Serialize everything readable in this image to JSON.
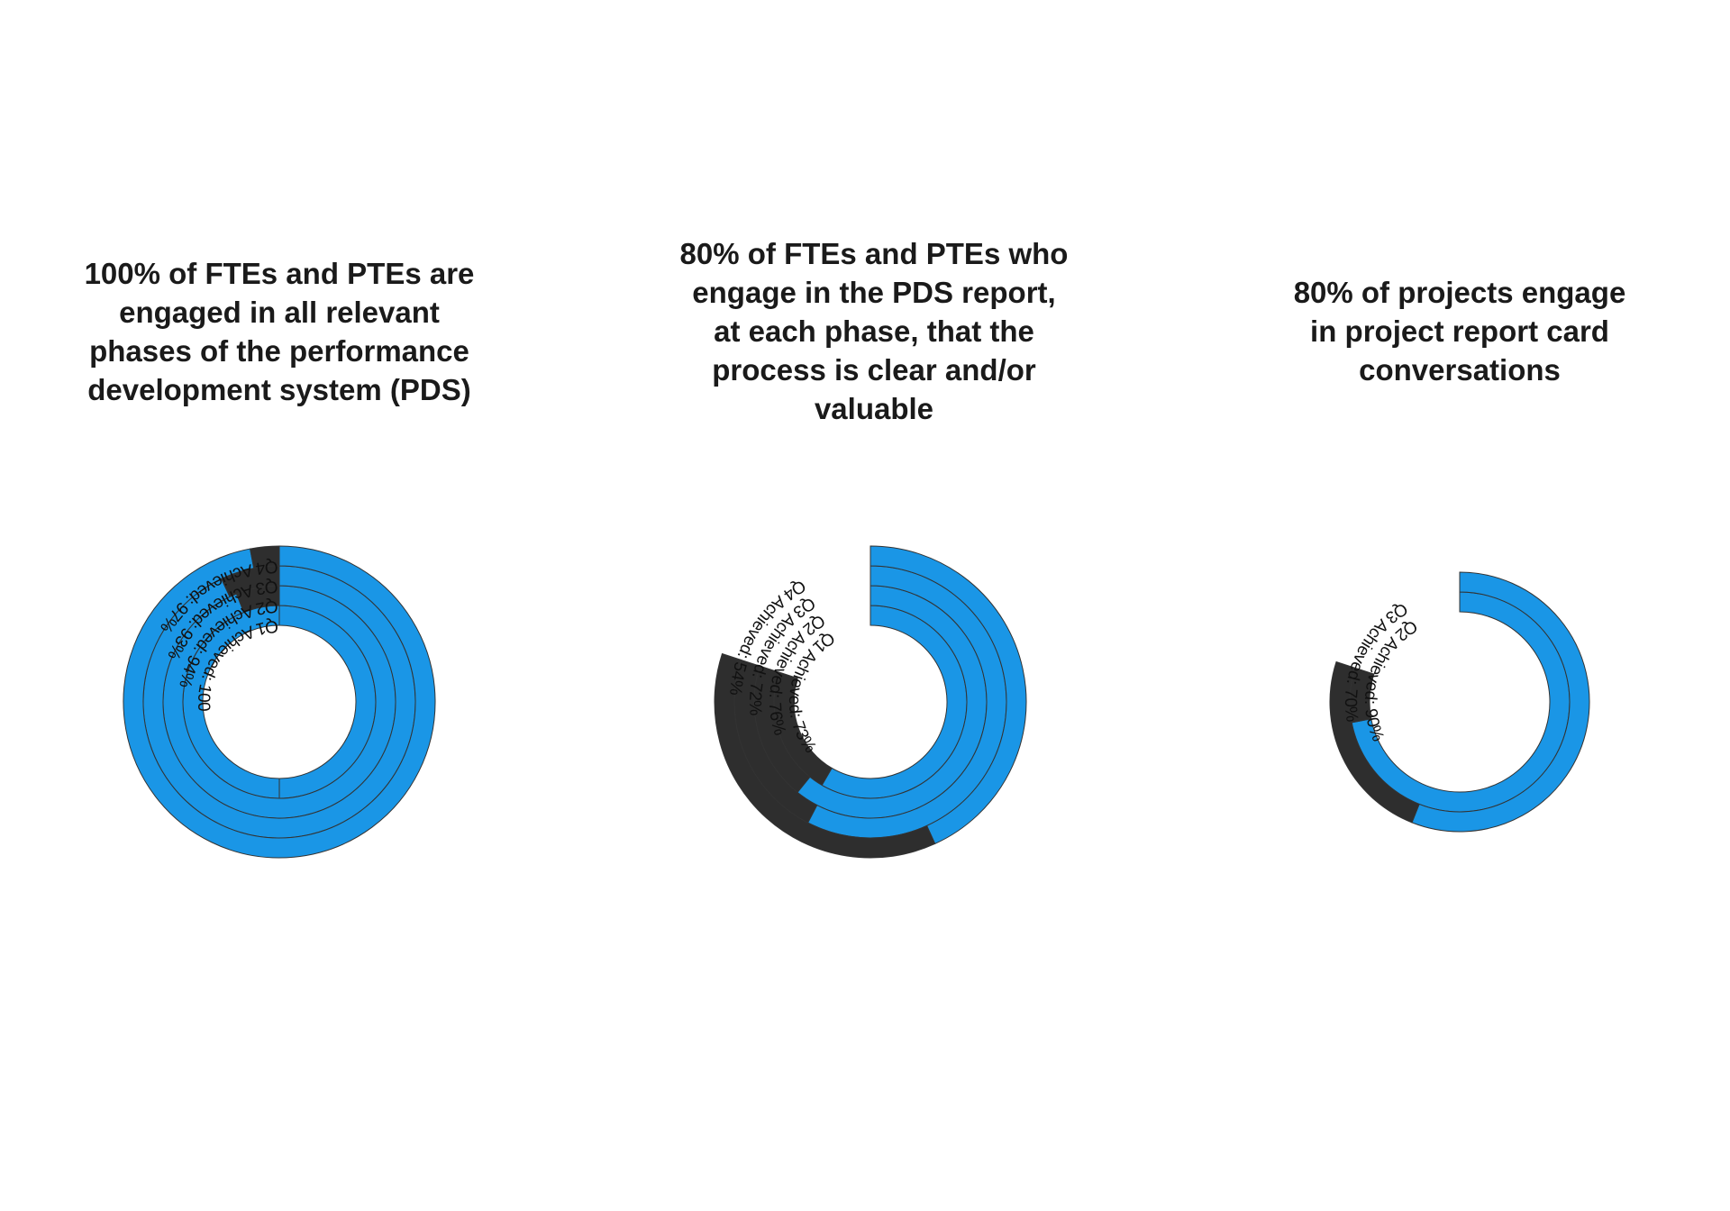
{
  "colors": {
    "achieved": "#1a96e6",
    "remaining": "#2e2e2e",
    "outline": "#333333",
    "background": "#ffffff"
  },
  "chart_data": [
    {
      "type": "radial-bar",
      "title": "100% of FTEs and PTEs are\nengaged in all relevant\nphases of the performance\ndevelopment system (PDS)",
      "target_percent": 100,
      "series": [
        {
          "name": "Q1",
          "label": "Q1 Achieved: 100%",
          "achieved": 100
        },
        {
          "name": "Q2",
          "label": "Q2 Achieved: 94%",
          "achieved": 94
        },
        {
          "name": "Q3",
          "label": "Q3 Achieved: 93%",
          "achieved": 93
        },
        {
          "name": "Q4",
          "label": "Q4 Achieved: 97%",
          "achieved": 97
        }
      ]
    },
    {
      "type": "radial-bar",
      "title": "80% of FTEs and PTEs who\nengage in the PDS report,\nat each phase, that the\nprocess is clear and/or\nvaluable",
      "target_percent": 80,
      "series": [
        {
          "name": "Q1",
          "label": "Q1 Achieved: 73%",
          "achieved": 73
        },
        {
          "name": "Q2",
          "label": "Q2 Achieved: 76%",
          "achieved": 76
        },
        {
          "name": "Q3",
          "label": "Q3 Achieved: 72%",
          "achieved": 72
        },
        {
          "name": "Q4",
          "label": "Q4 Achieved: 54%",
          "achieved": 54
        }
      ]
    },
    {
      "type": "radial-bar",
      "title": "80% of projects engage\nin project report card\nconversations",
      "target_percent": 80,
      "series": [
        {
          "name": "Q2",
          "label": "Q2 Achieved: 90%",
          "achieved": 90
        },
        {
          "name": "Q3",
          "label": "Q3 Achieved: 70%",
          "achieved": 70
        }
      ]
    }
  ]
}
